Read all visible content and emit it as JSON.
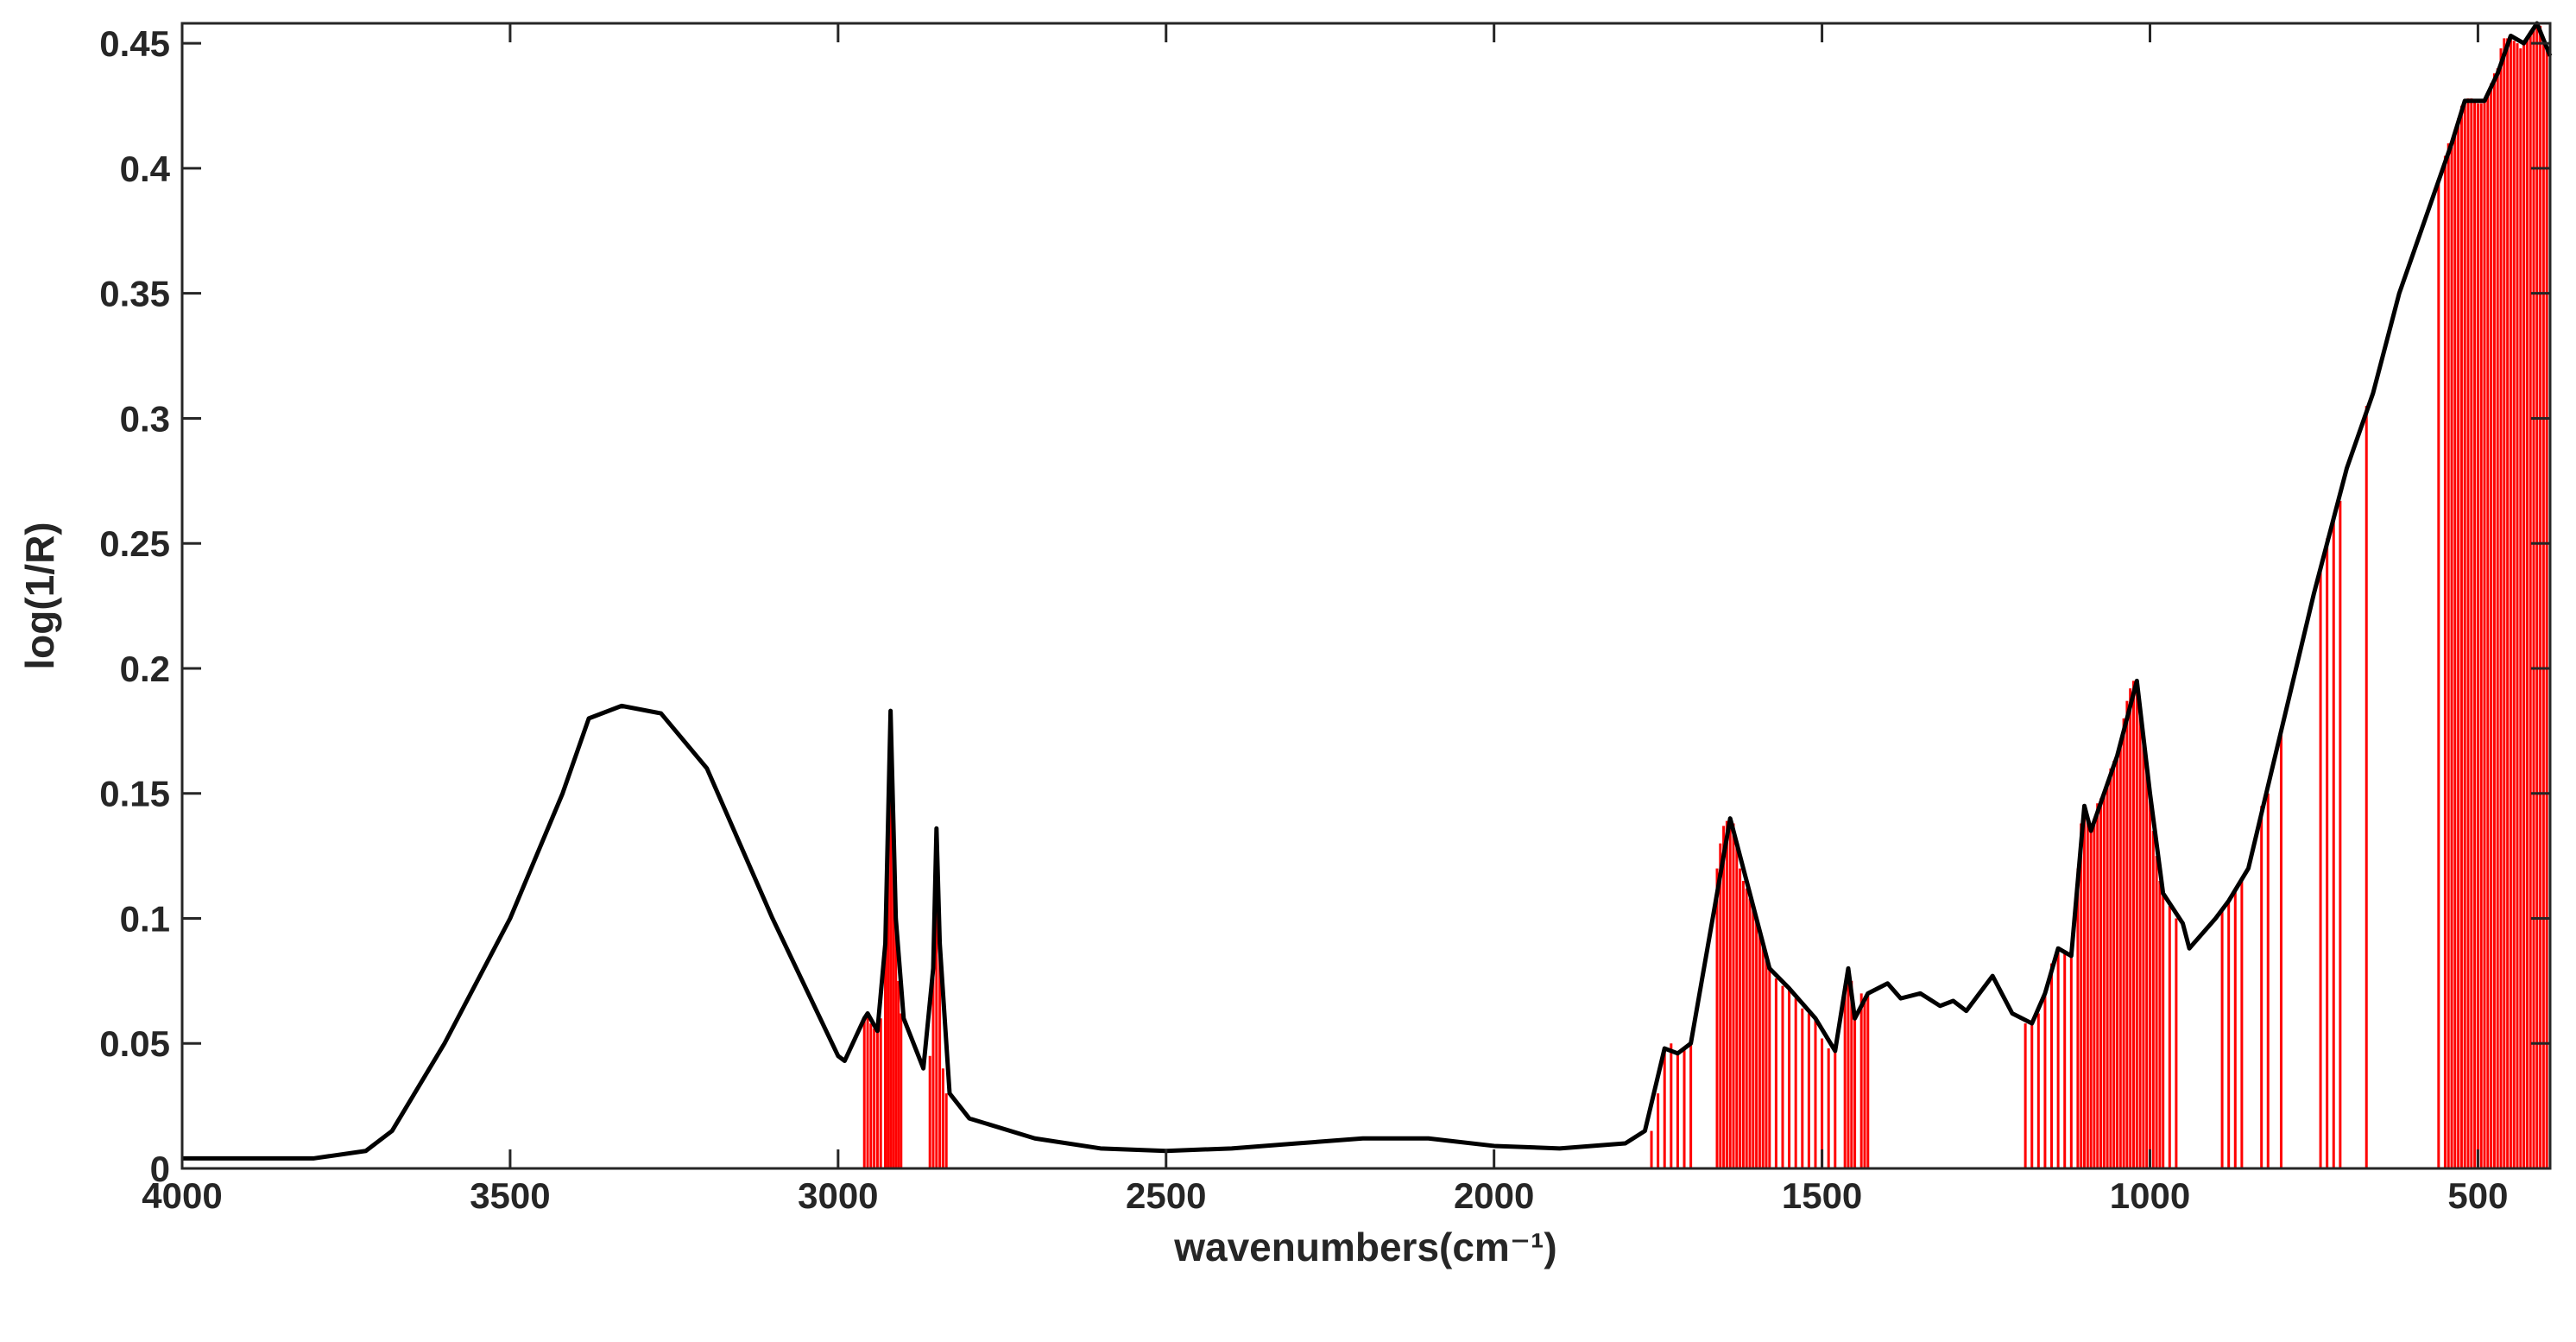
{
  "chart_data": {
    "type": "line",
    "xlabel": "wavenumbers(cm⁻¹)",
    "ylabel": "log(1/R)",
    "xlim": [
      4000,
      390
    ],
    "ylim": [
      0,
      0.458
    ],
    "xticks": [
      4000,
      3500,
      3000,
      2500,
      2000,
      1500,
      1000,
      500
    ],
    "yticks": [
      0,
      0.05,
      0.1,
      0.15,
      0.2,
      0.25,
      0.3,
      0.35,
      0.4,
      0.45
    ],
    "grid": false,
    "series": [
      {
        "color": "#ff0000",
        "style": "stem",
        "x": [
          2960,
          2955,
          2950,
          2945,
          2940,
          2935,
          2928,
          2924,
          2920,
          2916,
          2912,
          2908,
          2904,
          2860,
          2855,
          2850,
          2845,
          2840,
          2835,
          1760,
          1750,
          1740,
          1730,
          1720,
          1710,
          1700,
          1660,
          1655,
          1650,
          1645,
          1640,
          1635,
          1630,
          1625,
          1620,
          1615,
          1610,
          1605,
          1600,
          1595,
          1590,
          1585,
          1580,
          1570,
          1560,
          1550,
          1540,
          1530,
          1520,
          1510,
          1500,
          1490,
          1480,
          1465,
          1460,
          1455,
          1450,
          1440,
          1435,
          1430,
          1190,
          1180,
          1170,
          1160,
          1150,
          1140,
          1130,
          1120,
          1110,
          1105,
          1100,
          1095,
          1090,
          1085,
          1080,
          1075,
          1070,
          1065,
          1060,
          1055,
          1050,
          1045,
          1040,
          1035,
          1030,
          1025,
          1020,
          1015,
          1010,
          1005,
          1000,
          995,
          990,
          985,
          980,
          970,
          960,
          890,
          880,
          870,
          860,
          830,
          820,
          800,
          740,
          730,
          720,
          710,
          670,
          560,
          550,
          545,
          540,
          535,
          530,
          525,
          520,
          515,
          510,
          505,
          500,
          495,
          490,
          485,
          480,
          475,
          470,
          465,
          460,
          455,
          450,
          445,
          440,
          435,
          430,
          425,
          420,
          415,
          410,
          405,
          400,
          395,
          390
        ],
        "values": [
          0.06,
          0.062,
          0.058,
          0.056,
          0.055,
          0.06,
          0.09,
          0.14,
          0.183,
          0.15,
          0.1,
          0.075,
          0.062,
          0.045,
          0.08,
          0.136,
          0.09,
          0.04,
          0.03,
          0.015,
          0.03,
          0.048,
          0.05,
          0.046,
          0.048,
          0.05,
          0.12,
          0.13,
          0.137,
          0.139,
          0.14,
          0.138,
          0.13,
          0.12,
          0.115,
          0.112,
          0.108,
          0.104,
          0.1,
          0.095,
          0.09,
          0.085,
          0.08,
          0.076,
          0.073,
          0.072,
          0.068,
          0.064,
          0.062,
          0.06,
          0.052,
          0.048,
          0.047,
          0.072,
          0.08,
          0.075,
          0.06,
          0.07,
          0.068,
          0.07,
          0.058,
          0.058,
          0.062,
          0.07,
          0.082,
          0.088,
          0.087,
          0.085,
          0.12,
          0.138,
          0.145,
          0.14,
          0.135,
          0.14,
          0.146,
          0.148,
          0.15,
          0.155,
          0.16,
          0.163,
          0.165,
          0.17,
          0.18,
          0.187,
          0.192,
          0.195,
          0.195,
          0.185,
          0.17,
          0.16,
          0.15,
          0.135,
          0.125,
          0.115,
          0.11,
          0.105,
          0.1,
          0.104,
          0.107,
          0.112,
          0.115,
          0.145,
          0.15,
          0.175,
          0.24,
          0.252,
          0.26,
          0.267,
          0.305,
          0.395,
          0.405,
          0.41,
          0.41,
          0.415,
          0.42,
          0.425,
          0.427,
          0.428,
          0.428,
          0.427,
          0.426,
          0.426,
          0.427,
          0.43,
          0.434,
          0.438,
          0.44,
          0.448,
          0.452,
          0.452,
          0.453,
          0.451,
          0.45,
          0.448,
          0.45,
          0.452,
          0.455,
          0.456,
          0.458,
          0.457,
          0.452,
          0.448,
          0.445
        ]
      },
      {
        "color": "#000000",
        "style": "line",
        "x": [
          4000,
          3800,
          3720,
          3680,
          3600,
          3500,
          3420,
          3380,
          3330,
          3270,
          3200,
          3100,
          3000,
          2990,
          2960,
          2955,
          2940,
          2928,
          2920,
          2912,
          2900,
          2870,
          2855,
          2850,
          2845,
          2830,
          2800,
          2700,
          2600,
          2500,
          2400,
          2300,
          2200,
          2100,
          2000,
          1900,
          1800,
          1770,
          1740,
          1720,
          1700,
          1640,
          1600,
          1580,
          1550,
          1510,
          1480,
          1460,
          1450,
          1430,
          1400,
          1380,
          1350,
          1320,
          1300,
          1280,
          1240,
          1210,
          1180,
          1160,
          1140,
          1120,
          1100,
          1090,
          1070,
          1050,
          1020,
          1000,
          980,
          950,
          940,
          900,
          880,
          850,
          800,
          750,
          720,
          700,
          660,
          620,
          580,
          540,
          520,
          490,
          470,
          450,
          430,
          410,
          390
        ],
        "values": [
          0.004,
          0.004,
          0.007,
          0.015,
          0.05,
          0.1,
          0.15,
          0.18,
          0.185,
          0.182,
          0.16,
          0.1,
          0.045,
          0.043,
          0.06,
          0.062,
          0.055,
          0.09,
          0.183,
          0.1,
          0.06,
          0.04,
          0.08,
          0.136,
          0.09,
          0.03,
          0.02,
          0.012,
          0.008,
          0.007,
          0.008,
          0.01,
          0.012,
          0.012,
          0.009,
          0.008,
          0.01,
          0.015,
          0.048,
          0.046,
          0.05,
          0.14,
          0.1,
          0.08,
          0.072,
          0.06,
          0.047,
          0.08,
          0.06,
          0.07,
          0.074,
          0.068,
          0.07,
          0.065,
          0.067,
          0.063,
          0.077,
          0.062,
          0.058,
          0.07,
          0.088,
          0.085,
          0.145,
          0.135,
          0.15,
          0.165,
          0.195,
          0.15,
          0.11,
          0.098,
          0.088,
          0.1,
          0.107,
          0.12,
          0.175,
          0.23,
          0.26,
          0.28,
          0.31,
          0.35,
          0.38,
          0.41,
          0.427,
          0.427,
          0.438,
          0.453,
          0.45,
          0.458,
          0.445
        ]
      }
    ]
  }
}
